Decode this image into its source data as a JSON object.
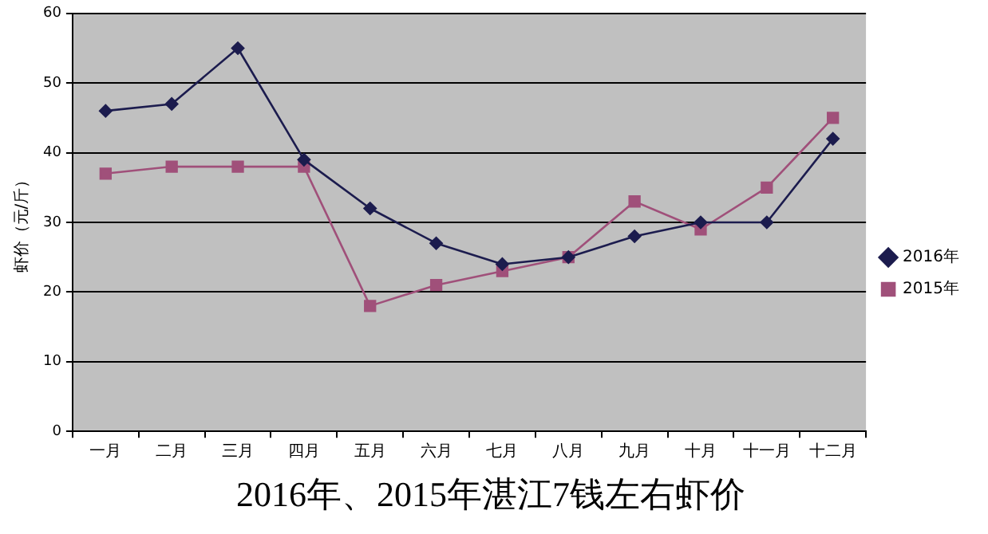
{
  "chart_data": {
    "type": "line",
    "title": "2016年、2015年湛江7钱左右虾价",
    "ylabel": "虾价（元/斤）",
    "categories": [
      "一月",
      "二月",
      "三月",
      "四月",
      "五月",
      "六月",
      "七月",
      "八月",
      "九月",
      "十月",
      "十一月",
      "十二月"
    ],
    "series": [
      {
        "name": "2016年",
        "color": "#1c1c4e",
        "marker": "diamond",
        "values": [
          46,
          47,
          55,
          39,
          32,
          27,
          24,
          25,
          28,
          30,
          30,
          42
        ]
      },
      {
        "name": "2015年",
        "color": "#a0507a",
        "marker": "square",
        "values": [
          37,
          38,
          38,
          38,
          18,
          21,
          23,
          25,
          33,
          29,
          35,
          45
        ]
      }
    ],
    "ylim": [
      0,
      60
    ],
    "yticks": [
      0,
      10,
      20,
      30,
      40,
      50,
      60
    ],
    "grid": "y",
    "legend": "right"
  }
}
